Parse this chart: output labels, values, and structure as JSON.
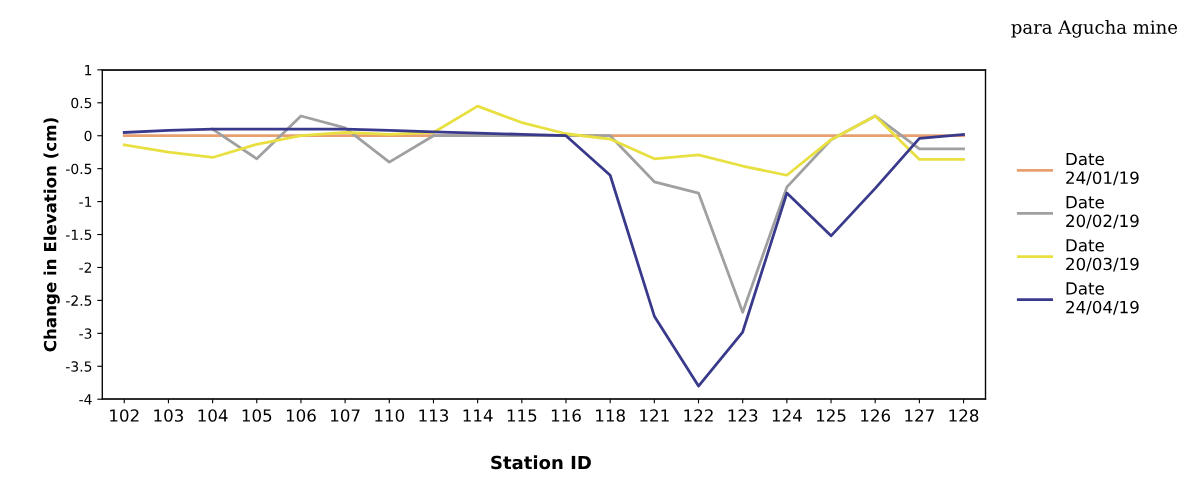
{
  "chart_data": {
    "type": "line",
    "xlabel": "Station ID",
    "ylabel": "Change in Elevation (cm)",
    "annotations": [
      "para Agucha mine"
    ],
    "categories": [
      "102",
      "103",
      "104",
      "105",
      "106",
      "107",
      "110",
      "113",
      "114",
      "115",
      "116",
      "118",
      "121",
      "122",
      "123",
      "124",
      "125",
      "126",
      "127",
      "128"
    ],
    "series": [
      {
        "name": "Date\n24/01/19",
        "color": "#e8a070",
        "values": [
          0,
          0,
          0,
          0,
          0,
          0,
          0,
          0,
          0,
          0,
          0,
          0,
          0,
          0,
          0,
          0,
          0,
          0,
          0,
          0
        ]
      },
      {
        "name": "Date\n20/02/19",
        "color": "#a0a0a0",
        "values": [
          null,
          null,
          0.1,
          -0.35,
          0.3,
          0.12,
          -0.4,
          0,
          0,
          0,
          0,
          0,
          -0.7,
          -0.87,
          -2.68,
          -0.78,
          -0.06,
          0.3,
          -0.2,
          -0.2
        ]
      },
      {
        "name": "Date\n20/03/19",
        "color": "#e8e040",
        "values": [
          -0.14,
          -0.25,
          -0.33,
          -0.13,
          0,
          0.05,
          0.02,
          0.05,
          0.45,
          0.2,
          0.03,
          -0.05,
          -0.35,
          -0.29,
          -0.46,
          -0.6,
          -0.06,
          0.3,
          -0.36,
          -0.36
        ]
      },
      {
        "name": "Date\n24/04/19",
        "color": "#3a3a8c",
        "values": [
          0.05,
          0.08,
          0.1,
          0.1,
          0.1,
          0.1,
          0.08,
          0.06,
          0.04,
          0.02,
          0,
          -0.6,
          -2.74,
          -3.8,
          -2.98,
          -0.87,
          -1.52,
          -0.8,
          -0.04,
          0.02
        ]
      }
    ],
    "ylim": [
      -4,
      1
    ],
    "yticks": [
      1,
      0.5,
      0,
      -0.5,
      -1,
      -1.5,
      -2,
      -2.5,
      -3,
      -3.5,
      -4
    ],
    "legend": "right",
    "grid": false
  }
}
